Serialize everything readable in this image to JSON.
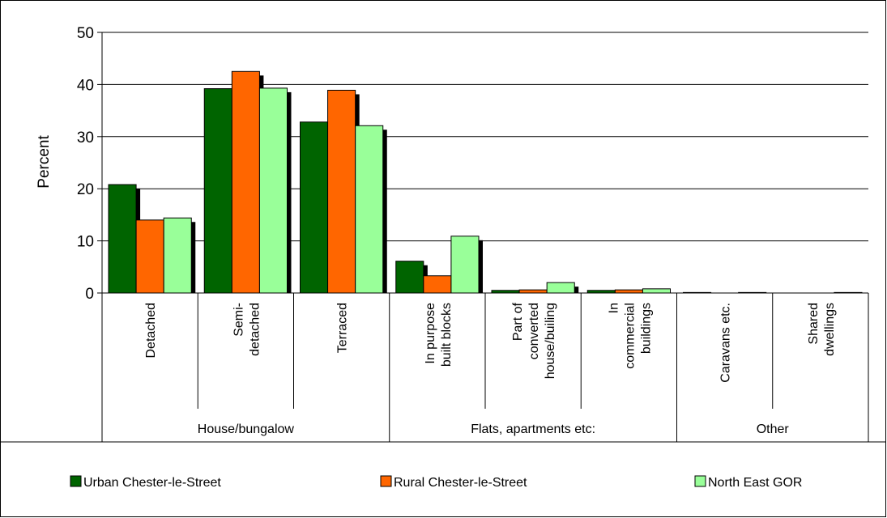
{
  "chart_data": {
    "type": "bar",
    "ylabel": "Percent",
    "ylim": [
      0,
      50
    ],
    "yticks": [
      0,
      10,
      20,
      30,
      40,
      50
    ],
    "grid": true,
    "legend_position": "bottom",
    "categories": [
      "Detached",
      "Semi-\ndetached",
      "Terraced",
      "In purpose\nbuilt blocks",
      "Part of\nconverted\nhouse/builing",
      "In\ncommercial\nbuildings",
      "Caravans etc.",
      "Shared\ndwellings"
    ],
    "groups": [
      {
        "label": "House/bungalow",
        "span": 3
      },
      {
        "label": "Flats, apartments etc:",
        "span": 3
      },
      {
        "label": "Other",
        "span": 2
      }
    ],
    "series": [
      {
        "name": "Urban Chester-le-Street",
        "color": "#006400",
        "values": [
          20.8,
          39.2,
          32.8,
          6.1,
          0.5,
          0.5,
          0.1,
          0.0
        ]
      },
      {
        "name": "Rural Chester-le-Street",
        "color": "#FF6600",
        "values": [
          14.0,
          42.5,
          38.9,
          3.3,
          0.6,
          0.6,
          0.0,
          0.0
        ]
      },
      {
        "name": "North East GOR",
        "color": "#99FF99",
        "values": [
          14.4,
          39.3,
          32.1,
          10.9,
          2.0,
          0.8,
          0.1,
          0.1
        ]
      }
    ]
  }
}
